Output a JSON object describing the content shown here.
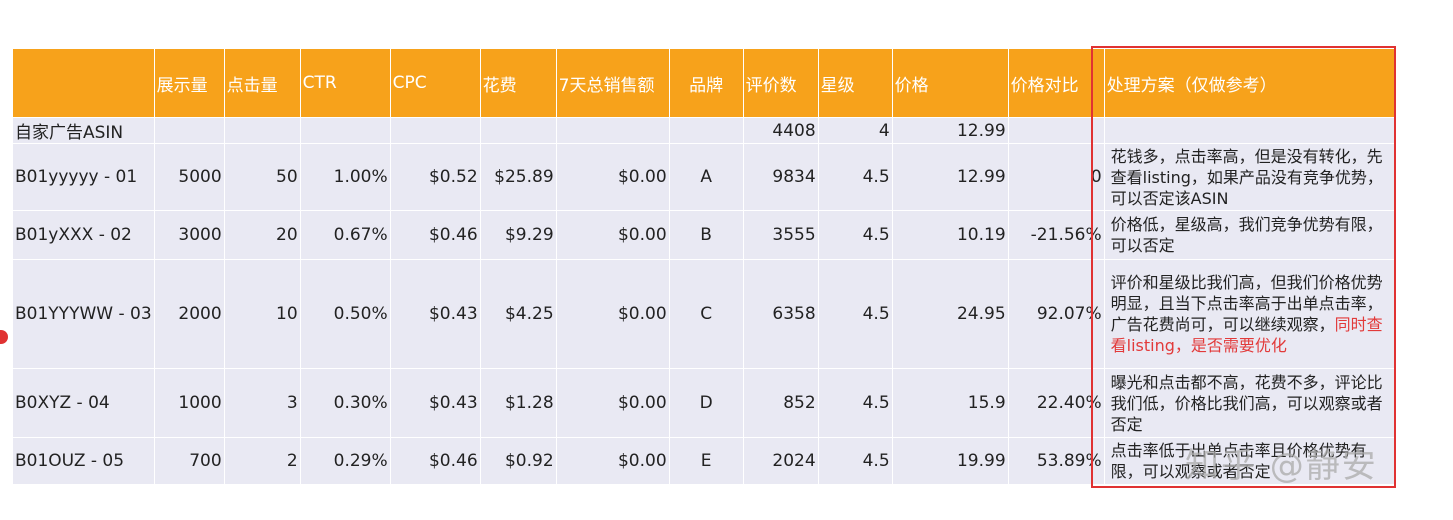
{
  "headers": [
    "",
    "展示量",
    "点击量",
    "CTR",
    "CPC",
    "花费",
    "7天总销售额",
    "品牌",
    "评价数",
    "星级",
    "价格",
    "价格对比",
    "处理方案（仅做参考）"
  ],
  "rows": [
    {
      "asin": "自家广告ASIN",
      "impressions": "",
      "clicks": "",
      "ctr": "",
      "cpc": "",
      "spend": "",
      "sales": "",
      "brand": "",
      "reviews": "4408",
      "stars": "4",
      "price": "12.99",
      "compare": "",
      "solution": "",
      "solution_highlight": ""
    },
    {
      "asin": "B01yyyyy - 01",
      "impressions": "5000",
      "clicks": "50",
      "ctr": "1.00%",
      "cpc": "$0.52",
      "spend": "$25.89",
      "sales": "$0.00",
      "brand": "A",
      "reviews": "9834",
      "stars": "4.5",
      "price": "12.99",
      "compare": "0",
      "solution": "花钱多，点击率高，但是没有转化，先查看listing，如果产品没有竞争优势，可以否定该ASIN",
      "solution_highlight": ""
    },
    {
      "asin": "B01yXXX - 02",
      "impressions": "3000",
      "clicks": "20",
      "ctr": "0.67%",
      "cpc": "$0.46",
      "spend": "$9.29",
      "sales": "$0.00",
      "brand": "B",
      "reviews": "3555",
      "stars": "4.5",
      "price": "10.19",
      "compare": "-21.56%",
      "solution": "价格低，星级高，我们竞争优势有限，可以否定",
      "solution_highlight": ""
    },
    {
      "asin": "B01YYYWW - 03",
      "impressions": "2000",
      "clicks": "10",
      "ctr": "0.50%",
      "cpc": "$0.43",
      "spend": "$4.25",
      "sales": "$0.00",
      "brand": "C",
      "reviews": "6358",
      "stars": "4.5",
      "price": "24.95",
      "compare": "92.07%",
      "solution": "评价和星级比我们高，但我们价格优势明显，且当下点击率高于出单点击率，广告花费尚可，可以继续观察，",
      "solution_highlight": "同时查看listing，是否需要优化"
    },
    {
      "asin": "B0XYZ - 04",
      "impressions": "1000",
      "clicks": "3",
      "ctr": "0.30%",
      "cpc": "$0.43",
      "spend": "$1.28",
      "sales": "$0.00",
      "brand": "D",
      "reviews": "852",
      "stars": "4.5",
      "price": "15.9",
      "compare": "22.40%",
      "solution": "曝光和点击都不高，花费不多，评论比我们低，价格比我们高，可以观察或者否定",
      "solution_highlight": ""
    },
    {
      "asin": "B01OUZ - 05",
      "impressions": "700",
      "clicks": "2",
      "ctr": "0.29%",
      "cpc": "$0.46",
      "spend": "$0.92",
      "sales": "$0.00",
      "brand": "E",
      "reviews": "2024",
      "stars": "4.5",
      "price": "19.99",
      "compare": "53.89%",
      "solution": "点击率低于出单点击率且价格优势有限，可以观察或者否定",
      "solution_highlight": ""
    }
  ],
  "watermark": "知乎 @静安",
  "colors": {
    "header": "#f7a21b",
    "row": "#e9e9f3",
    "box": "#e03232",
    "highlight_text": "#e23a3a"
  }
}
